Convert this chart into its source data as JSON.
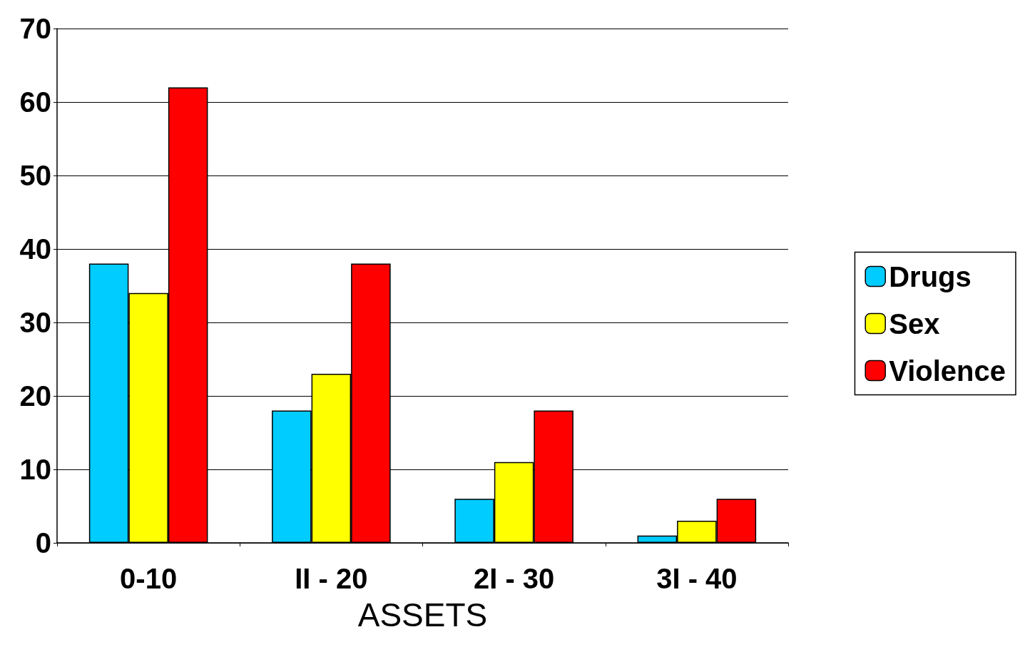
{
  "chart_data": {
    "type": "bar",
    "xlabel": "ASSETS",
    "categories": [
      "0-10",
      "II - 20",
      "2I - 30",
      "3I - 40"
    ],
    "series": [
      {
        "name": "Drugs",
        "color": "#00ccff",
        "values": [
          38,
          18,
          6,
          1
        ]
      },
      {
        "name": "Sex",
        "color": "#ffff00",
        "values": [
          34,
          23,
          11,
          3
        ]
      },
      {
        "name": "Violence",
        "color": "#ff0000",
        "values": [
          62,
          38,
          18,
          6
        ]
      }
    ],
    "ylim": [
      0,
      70
    ],
    "yticks": [
      0,
      10,
      20,
      30,
      40,
      50,
      60,
      70
    ],
    "grid": "y",
    "legend": "right"
  }
}
